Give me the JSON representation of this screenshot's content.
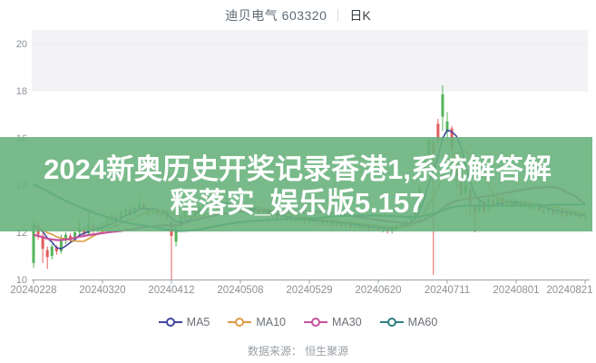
{
  "header": {
    "title": "迪贝电气 603320",
    "period_label": "日K"
  },
  "watermark": {
    "line1": "2024新奥历史开奖记录香港1,系统解答解",
    "line2": "释落实_娱乐版5.157",
    "bg_color": "#69b27d",
    "text_color": "#ffffff"
  },
  "footer": {
    "source_label": "数据来源：",
    "source_value": "恒生聚源"
  },
  "legend": {
    "items": [
      {
        "label": "MA5",
        "color": "#41489b",
        "period": 5
      },
      {
        "label": "MA10",
        "color": "#dd9b45",
        "period": 10
      },
      {
        "label": "MA30",
        "color": "#c4529c",
        "period": 30
      },
      {
        "label": "MA60",
        "color": "#2e8083",
        "period": 60
      }
    ]
  },
  "chart_data": {
    "type": "candlestick",
    "title": "迪贝电气 603320 日K",
    "xlabel": "",
    "ylabel": "",
    "ylim": [
      10,
      20
    ],
    "y_ticks": [
      10,
      12,
      14,
      16,
      18,
      20
    ],
    "grid": "horizontal",
    "legend_position": "bottom",
    "x_tick_labels": [
      "20240228",
      "20240320",
      "20240412",
      "20240508",
      "20240529",
      "20240620",
      "20240711",
      "20240801",
      "20240821"
    ],
    "x_tick_indices": [
      0,
      15,
      30,
      45,
      60,
      75,
      90,
      105,
      120
    ],
    "up_color": "#55b35b",
    "down_color": "#e15d5d",
    "candles_ohlc": [
      [
        10.7,
        12.55,
        10.5,
        12.35
      ],
      [
        12.3,
        12.4,
        11.7,
        11.9
      ],
      [
        11.85,
        11.95,
        10.7,
        11.3
      ],
      [
        11.25,
        11.4,
        10.45,
        10.95
      ],
      [
        11.0,
        11.5,
        10.85,
        11.4
      ],
      [
        11.35,
        11.45,
        11.05,
        11.2
      ],
      [
        11.2,
        11.9,
        11.1,
        11.65
      ],
      [
        11.65,
        12.0,
        11.5,
        11.9
      ],
      [
        11.85,
        11.95,
        11.55,
        11.7
      ],
      [
        11.7,
        12.1,
        11.6,
        12.0
      ],
      [
        12.0,
        12.5,
        11.9,
        12.2
      ],
      [
        12.15,
        12.25,
        11.8,
        11.95
      ],
      [
        11.95,
        12.85,
        11.9,
        12.35
      ],
      [
        12.3,
        12.4,
        11.95,
        12.1
      ],
      [
        12.1,
        12.3,
        12.0,
        12.2
      ],
      [
        12.2,
        12.4,
        12.1,
        12.3
      ],
      [
        12.3,
        12.6,
        12.2,
        12.5
      ],
      [
        12.5,
        12.9,
        12.4,
        12.7
      ],
      [
        12.65,
        12.75,
        12.4,
        12.55
      ],
      [
        12.55,
        12.95,
        12.45,
        12.85
      ],
      [
        12.85,
        13.15,
        12.7,
        13.0
      ],
      [
        12.95,
        13.05,
        12.65,
        12.8
      ],
      [
        12.8,
        13.1,
        12.7,
        13.05
      ],
      [
        13.05,
        13.5,
        12.95,
        13.2
      ],
      [
        13.15,
        13.25,
        12.9,
        13.0
      ],
      [
        12.95,
        13.05,
        12.7,
        12.85
      ],
      [
        12.85,
        13.05,
        12.75,
        12.95
      ],
      [
        12.9,
        13.0,
        12.6,
        12.75
      ],
      [
        12.75,
        12.95,
        12.65,
        12.85
      ],
      [
        12.8,
        12.9,
        12.5,
        12.6
      ],
      [
        12.45,
        12.5,
        10.0,
        11.85
      ],
      [
        11.6,
        12.35,
        11.4,
        12.25
      ],
      [
        12.25,
        12.7,
        12.15,
        12.6
      ],
      [
        12.6,
        13.1,
        12.5,
        12.9
      ],
      [
        12.9,
        13.55,
        12.8,
        13.1
      ],
      [
        13.05,
        13.15,
        12.75,
        12.85
      ],
      [
        12.85,
        13.1,
        12.75,
        13.0
      ],
      [
        13.0,
        13.3,
        12.9,
        13.2
      ],
      [
        13.2,
        13.95,
        13.1,
        13.4
      ],
      [
        13.35,
        13.45,
        13.05,
        13.15
      ],
      [
        13.15,
        13.4,
        13.05,
        13.3
      ],
      [
        13.25,
        13.35,
        13.0,
        13.1
      ],
      [
        13.1,
        13.8,
        13.0,
        13.25
      ],
      [
        13.2,
        13.3,
        12.95,
        13.05
      ],
      [
        13.05,
        13.25,
        12.95,
        13.15
      ],
      [
        13.1,
        13.2,
        12.85,
        12.95
      ],
      [
        12.95,
        13.15,
        12.85,
        13.05
      ],
      [
        13.0,
        13.1,
        12.8,
        12.9
      ],
      [
        12.9,
        13.1,
        12.8,
        13.0
      ],
      [
        12.95,
        13.05,
        12.7,
        12.8
      ],
      [
        12.8,
        13.0,
        12.7,
        12.9
      ],
      [
        12.85,
        12.95,
        12.6,
        12.7
      ],
      [
        12.7,
        12.9,
        12.6,
        12.8
      ],
      [
        12.75,
        12.85,
        12.5,
        12.6
      ],
      [
        12.6,
        12.8,
        12.5,
        12.7
      ],
      [
        12.65,
        12.75,
        12.45,
        12.55
      ],
      [
        12.55,
        12.75,
        12.45,
        12.65
      ],
      [
        12.6,
        12.7,
        12.4,
        12.5
      ],
      [
        12.5,
        12.7,
        12.4,
        12.6
      ],
      [
        12.55,
        12.65,
        12.35,
        12.45
      ],
      [
        12.45,
        12.65,
        12.35,
        12.5
      ],
      [
        12.5,
        12.6,
        12.3,
        12.45
      ],
      [
        12.45,
        12.65,
        12.35,
        12.55
      ],
      [
        12.5,
        12.6,
        12.3,
        12.4
      ],
      [
        12.4,
        12.6,
        12.3,
        12.5
      ],
      [
        12.45,
        12.55,
        12.25,
        12.35
      ],
      [
        12.35,
        12.55,
        12.25,
        12.45
      ],
      [
        12.4,
        12.5,
        12.2,
        12.3
      ],
      [
        12.3,
        12.5,
        12.2,
        12.4
      ],
      [
        12.35,
        12.45,
        12.15,
        12.25
      ],
      [
        12.25,
        12.45,
        12.15,
        12.35
      ],
      [
        12.3,
        12.4,
        12.1,
        12.2
      ],
      [
        12.2,
        12.4,
        12.1,
        12.3
      ],
      [
        12.25,
        12.35,
        12.05,
        12.15
      ],
      [
        12.15,
        12.35,
        12.05,
        12.25
      ],
      [
        12.2,
        12.3,
        12.05,
        12.1
      ],
      [
        12.1,
        12.25,
        12.0,
        12.2
      ],
      [
        12.15,
        12.25,
        11.95,
        12.05
      ],
      [
        12.05,
        12.3,
        11.95,
        12.25
      ],
      [
        12.2,
        12.35,
        12.1,
        12.3
      ],
      [
        12.3,
        12.45,
        12.2,
        12.4
      ],
      [
        12.4,
        12.55,
        12.3,
        12.5
      ],
      [
        12.5,
        12.7,
        12.4,
        12.6
      ],
      [
        12.6,
        13.1,
        12.55,
        13.0
      ],
      [
        13.05,
        13.95,
        13.0,
        13.9
      ],
      [
        14.2,
        15.1,
        14.1,
        15.0
      ],
      [
        15.3,
        16.0,
        15.2,
        15.9
      ],
      [
        15.85,
        15.95,
        10.2,
        15.3
      ],
      [
        16.6,
        16.8,
        15.7,
        15.9
      ],
      [
        16.9,
        18.23,
        16.3,
        17.85
      ],
      [
        16.25,
        17.1,
        15.9,
        16.7
      ],
      [
        16.4,
        16.5,
        15.4,
        15.55
      ],
      [
        15.2,
        15.3,
        13.9,
        14.4
      ],
      [
        14.2,
        14.35,
        13.5,
        13.6
      ],
      [
        13.7,
        14.1,
        13.55,
        14.0
      ],
      [
        13.8,
        13.9,
        12.6,
        13.2
      ],
      [
        13.1,
        13.2,
        12.0,
        12.8
      ],
      [
        12.9,
        13.4,
        12.8,
        13.3
      ],
      [
        13.25,
        13.35,
        12.8,
        12.9
      ],
      [
        13.0,
        13.6,
        12.9,
        13.4
      ],
      [
        13.35,
        13.45,
        13.0,
        13.1
      ],
      [
        13.15,
        13.55,
        13.05,
        13.5
      ],
      [
        13.45,
        13.55,
        13.05,
        13.15
      ],
      [
        13.2,
        13.45,
        13.1,
        13.4
      ],
      [
        13.35,
        13.45,
        13.0,
        13.1
      ],
      [
        13.15,
        13.4,
        13.05,
        13.35
      ],
      [
        13.3,
        13.4,
        13.0,
        13.1
      ],
      [
        13.15,
        13.35,
        13.05,
        13.3
      ],
      [
        13.25,
        13.35,
        12.9,
        13.0
      ],
      [
        13.05,
        13.25,
        12.95,
        13.2
      ],
      [
        13.15,
        13.25,
        12.85,
        12.95
      ],
      [
        12.95,
        13.05,
        12.75,
        12.85
      ],
      [
        12.9,
        13.1,
        12.8,
        13.05
      ],
      [
        13.0,
        13.1,
        12.7,
        12.8
      ],
      [
        12.85,
        13.0,
        12.75,
        12.95
      ],
      [
        12.9,
        13.0,
        12.65,
        12.75
      ],
      [
        12.78,
        12.88,
        12.6,
        12.7
      ],
      [
        12.72,
        12.9,
        12.65,
        12.85
      ],
      [
        12.8,
        12.88,
        12.6,
        12.7
      ],
      [
        12.72,
        12.8,
        12.55,
        12.65
      ],
      [
        12.66,
        12.85,
        12.58,
        12.75
      ]
    ],
    "ma_seed_closes": [
      17.8,
      17.6,
      17.5,
      17.4,
      17.3,
      17.5,
      17.4,
      17.6,
      17.5,
      17.4,
      16.9,
      16.7,
      16.6,
      16.5,
      16.4,
      16.5,
      16.3,
      16.4,
      16.3,
      16.4,
      15.5,
      15.3,
      15.2,
      15.0,
      14.9,
      14.9,
      14.8,
      14.8,
      14.8,
      14.8,
      13.4,
      13.2,
      13.0,
      12.7,
      12.4,
      12.0,
      11.6,
      11.2,
      10.9,
      10.7,
      10.8,
      11.0,
      11.2,
      11.4,
      11.3,
      11.5,
      11.7,
      11.9,
      12.0,
      12.1,
      12.0,
      12.1,
      12.2,
      12.15,
      12.1,
      12.2,
      12.25,
      12.2,
      12.3,
      12.3
    ]
  },
  "theme": {
    "grid_color": "#ececf0",
    "axis_color": "#9aa0a6",
    "tick_label_color": "#8c9196",
    "top_band_color": "#f3f3f6"
  }
}
